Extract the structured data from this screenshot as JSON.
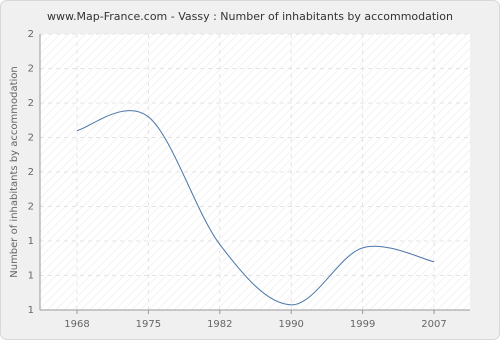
{
  "chart_data": {
    "type": "line",
    "title": "www.Map-France.com - Vassy : Number of inhabitants by accommodation",
    "y_label": "Number of inhabitants by accommodation",
    "categories": [
      "1968",
      "1975",
      "1982",
      "1990",
      "1999",
      "2007"
    ],
    "series": [
      {
        "name": "Vassy",
        "color": "#4a76a8",
        "values": [
          2.04,
          2.12,
          1.38,
          1.03,
          1.36,
          1.28
        ]
      }
    ],
    "ylim": [
      1,
      2.6
    ],
    "yticks": [
      {
        "value": 1,
        "label": "1"
      },
      {
        "value": 1.2,
        "label": "1"
      },
      {
        "value": 1.4,
        "label": "1"
      },
      {
        "value": 1.6,
        "label": "2"
      },
      {
        "value": 1.8,
        "label": "2"
      },
      {
        "value": 2,
        "label": "2"
      },
      {
        "value": 2.2,
        "label": "2"
      },
      {
        "value": 2.4,
        "label": "2"
      },
      {
        "value": 2.6,
        "label": "2"
      }
    ],
    "grid": true
  }
}
